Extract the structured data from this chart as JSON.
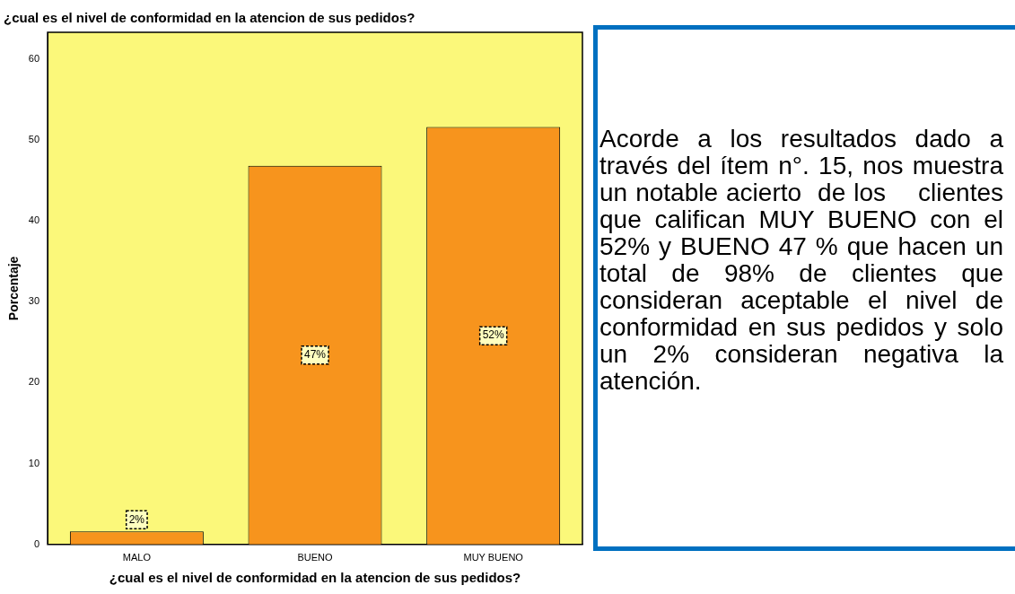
{
  "chart_data": {
    "type": "bar",
    "title": "¿cual es el nivel de conformidad en la atencion de sus pedidos?",
    "xlabel": "¿cual es el nivel de conformidad en la atencion de sus pedidos?",
    "ylabel": "Porcentaje",
    "categories": [
      "MALO",
      "BUENO",
      "MUY BUENO"
    ],
    "values": [
      1.6,
      46.8,
      51.6
    ],
    "color": "#f7941d",
    "value_labels": [
      "2%",
      "47%",
      "52%"
    ],
    "ylim": [
      0,
      63.3
    ],
    "yticks": [
      0,
      10,
      20,
      30,
      40,
      50,
      60
    ],
    "grid": false,
    "legend": false,
    "annotations": [
      "Acorde a los resultados dado a través del ítem n°. 15, nos muestra un notable acierto  de los    clientes que califican MUY BUENO con el 52% y BUENO 47 % que hacen un total de 98% de clientes que consideran aceptable el nivel de conformidad en sus pedidos y solo un 2% consideran negativa la atención."
    ]
  }
}
